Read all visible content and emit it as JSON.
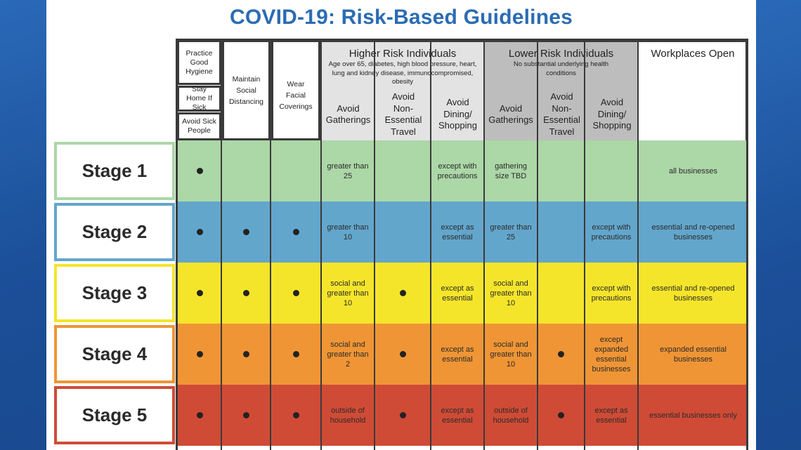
{
  "title": "COVID-19: Risk-Based Guidelines",
  "header": {
    "hygiene": {
      "practice": "Practice Good Hygiene",
      "stay_home": "Stay Home If Sick",
      "avoid_sick": "Avoid Sick People"
    },
    "distancing": "Maintain Social Distancing",
    "coverings": "Wear Facial Coverings",
    "higher": {
      "title": "Higher Risk Individuals",
      "desc": "Age over 65, diabetes, high blood pressure, heart, lung and kidney disease, immunocompromised, obesity",
      "cols": [
        "Avoid Gatherings",
        "Avoid Non-Essential Travel",
        "Avoid Dining/ Shopping"
      ]
    },
    "lower": {
      "title": "Lower Risk Individuals",
      "desc": "No substantial underlying health conditions",
      "cols": [
        "Avoid Gatherings",
        "Avoid Non-Essential Travel",
        "Avoid Dining/ Shopping"
      ]
    },
    "workplaces": "Workplaces Open"
  },
  "stages": [
    {
      "label": "Stage 1",
      "color": "#acd7a7",
      "border": "#acd7a7",
      "cells": [
        "•",
        "",
        "",
        "greater than 25",
        "",
        "except with precautions",
        "gathering size TBD",
        "",
        "",
        "all businesses"
      ]
    },
    {
      "label": "Stage 2",
      "color": "#63a6cc",
      "border": "#63a6cc",
      "cells": [
        "•",
        "•",
        "•",
        "greater than 10",
        "",
        "except as essential",
        "greater than 25",
        "",
        "except with precautions",
        "essential and re-opened businesses"
      ]
    },
    {
      "label": "Stage 3",
      "color": "#f5e52a",
      "border": "#f5e52a",
      "cells": [
        "•",
        "•",
        "•",
        "social and greater than 10",
        "•",
        "except as essential",
        "social and greater than 10",
        "",
        "except with precautions",
        "essential and re-opened businesses"
      ]
    },
    {
      "label": "Stage 4",
      "color": "#ef9535",
      "border": "#ef9535",
      "cells": [
        "•",
        "•",
        "•",
        "social and greater than 2",
        "•",
        "except as essential",
        "social and greater than 10",
        "•",
        "except expanded essential businesses",
        "expanded essential businesses"
      ]
    },
    {
      "label": "Stage 5",
      "color": "#cf4b36",
      "border": "#cf4b36",
      "cells": [
        "•",
        "•",
        "•",
        "outside of household",
        "•",
        "except as essential",
        "outside of household",
        "•",
        "except as essential",
        "essential businesses only"
      ]
    }
  ]
}
